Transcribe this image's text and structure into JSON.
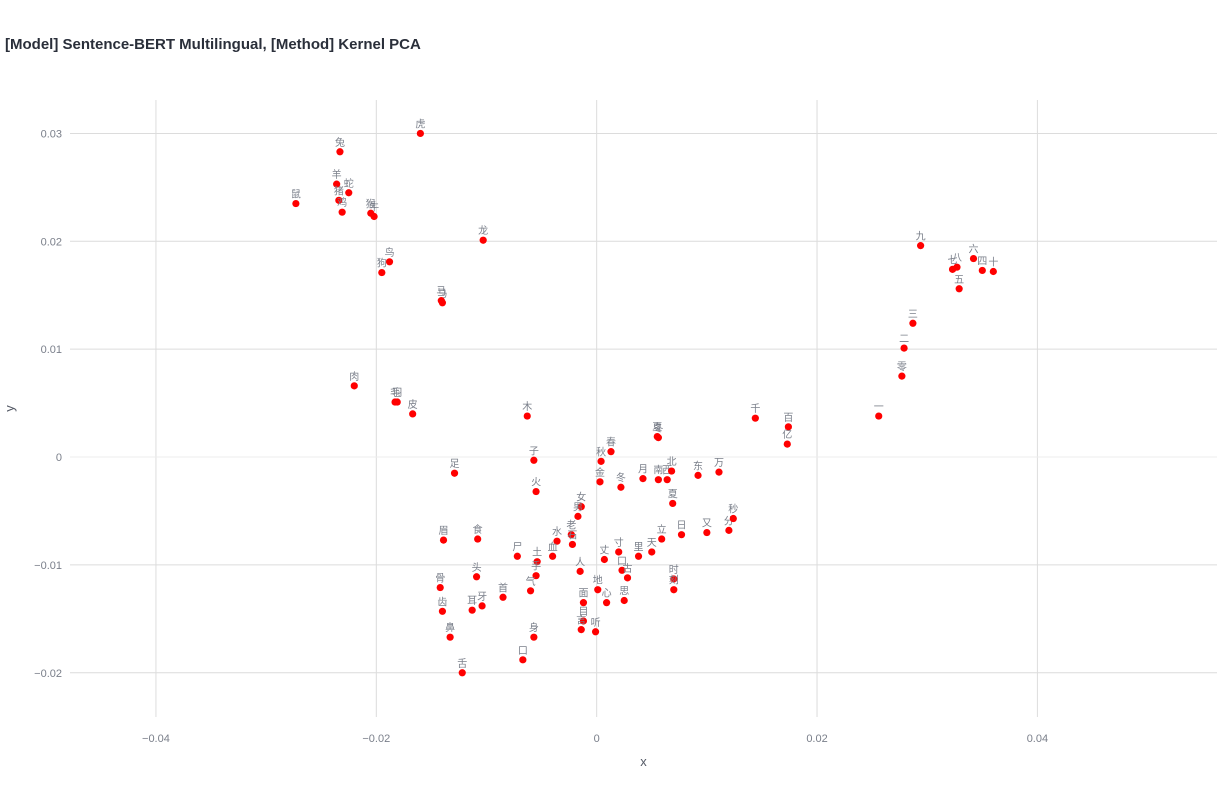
{
  "chart_data": {
    "type": "scatter",
    "title": "[Model] Sentence-BERT Multilingual, [Method] Kernel PCA",
    "xlabel": "x",
    "ylabel": "y",
    "xlim": [
      -0.0478,
      0.0563
    ],
    "ylim": [
      -0.0241,
      0.0331
    ],
    "xticks": [
      -0.04,
      -0.02,
      0,
      0.02,
      0.04
    ],
    "xtick_labels": [
      "−0.04",
      "−0.02",
      "0",
      "0.02",
      "0.04"
    ],
    "yticks": [
      -0.02,
      -0.01,
      0,
      0.01,
      0.02,
      0.03
    ],
    "ytick_labels": [
      "−0.02",
      "−0.01",
      "0",
      "0.01",
      "0.02",
      "0.03"
    ],
    "grid": true,
    "marker_color": "#ff0000",
    "points": [
      {
        "label": "虎",
        "x": -0.016,
        "y": 0.03
      },
      {
        "label": "兔",
        "x": -0.0233,
        "y": 0.0283
      },
      {
        "label": "羊",
        "x": -0.0236,
        "y": 0.0253
      },
      {
        "label": "蛇",
        "x": -0.0225,
        "y": 0.0245
      },
      {
        "label": "鼠",
        "x": -0.0273,
        "y": 0.0235
      },
      {
        "label": "猪",
        "x": -0.0234,
        "y": 0.0238
      },
      {
        "label": "鸡",
        "x": -0.0231,
        "y": 0.0227
      },
      {
        "label": "猴",
        "x": -0.0205,
        "y": 0.0226
      },
      {
        "label": "牛",
        "x": -0.0202,
        "y": 0.0223
      },
      {
        "label": "龙",
        "x": -0.0103,
        "y": 0.0201
      },
      {
        "label": "鸟",
        "x": -0.0188,
        "y": 0.0181
      },
      {
        "label": "狗",
        "x": -0.0195,
        "y": 0.0171
      },
      {
        "label": "马",
        "x": -0.0141,
        "y": 0.0145
      },
      {
        "label": "马",
        "x": -0.014,
        "y": 0.0143
      },
      {
        "label": "肉",
        "x": -0.022,
        "y": 0.0066
      },
      {
        "label": "毛",
        "x": -0.0183,
        "y": 0.0051
      },
      {
        "label": "羽",
        "x": -0.0181,
        "y": 0.0051
      },
      {
        "label": "皮",
        "x": -0.0167,
        "y": 0.004
      },
      {
        "label": "木",
        "x": -0.0063,
        "y": 0.0038
      },
      {
        "label": "春",
        "x": 0.0013,
        "y": 0.0005
      },
      {
        "label": "秋",
        "x": 0.0004,
        "y": -0.0004
      },
      {
        "label": "夏",
        "x": 0.0055,
        "y": 0.0019
      },
      {
        "label": "冬",
        "x": 0.0056,
        "y": 0.0018
      },
      {
        "label": "子",
        "x": -0.0057,
        "y": -0.0003
      },
      {
        "label": "足",
        "x": -0.0129,
        "y": -0.0015
      },
      {
        "label": "火",
        "x": -0.0055,
        "y": -0.0032
      },
      {
        "label": "金",
        "x": 0.0003,
        "y": -0.0023
      },
      {
        "label": "冬",
        "x": 0.0022,
        "y": -0.0028
      },
      {
        "label": "月",
        "x": 0.0042,
        "y": -0.002
      },
      {
        "label": "南",
        "x": 0.0056,
        "y": -0.0021
      },
      {
        "label": "西",
        "x": 0.0064,
        "y": -0.0021
      },
      {
        "label": "北",
        "x": 0.0068,
        "y": -0.0013
      },
      {
        "label": "东",
        "x": 0.0092,
        "y": -0.0017
      },
      {
        "label": "万",
        "x": 0.0111,
        "y": -0.0014
      },
      {
        "label": "夏",
        "x": 0.0069,
        "y": -0.0043
      },
      {
        "label": "千",
        "x": 0.0144,
        "y": 0.0036
      },
      {
        "label": "百",
        "x": 0.0174,
        "y": 0.0028
      },
      {
        "label": "亿",
        "x": 0.0173,
        "y": 0.0012
      },
      {
        "label": "女",
        "x": -0.0014,
        "y": -0.0046
      },
      {
        "label": "男",
        "x": -0.0017,
        "y": -0.0055
      },
      {
        "label": "眉",
        "x": -0.0139,
        "y": -0.0077
      },
      {
        "label": "食",
        "x": -0.0108,
        "y": -0.0076
      },
      {
        "label": "水",
        "x": -0.0036,
        "y": -0.0078
      },
      {
        "label": "老",
        "x": -0.0023,
        "y": -0.0072
      },
      {
        "label": "石",
        "x": -0.0022,
        "y": -0.0081
      },
      {
        "label": "立",
        "x": 0.0059,
        "y": -0.0076
      },
      {
        "label": "日",
        "x": 0.0077,
        "y": -0.0072
      },
      {
        "label": "又",
        "x": 0.01,
        "y": -0.007
      },
      {
        "label": "分",
        "x": 0.012,
        "y": -0.0068
      },
      {
        "label": "秒",
        "x": 0.0124,
        "y": -0.0057
      },
      {
        "label": "尸",
        "x": -0.0072,
        "y": -0.0092
      },
      {
        "label": "土",
        "x": -0.0054,
        "y": -0.0097
      },
      {
        "label": "血",
        "x": -0.004,
        "y": -0.0092
      },
      {
        "label": "寸",
        "x": 0.002,
        "y": -0.0088
      },
      {
        "label": "天",
        "x": 0.005,
        "y": -0.0088
      },
      {
        "label": "里",
        "x": 0.0038,
        "y": -0.0092
      },
      {
        "label": "丈",
        "x": 0.0007,
        "y": -0.0095
      },
      {
        "label": "口",
        "x": 0.0023,
        "y": -0.0105
      },
      {
        "label": "古",
        "x": 0.0028,
        "y": -0.0112
      },
      {
        "label": "人",
        "x": -0.0015,
        "y": -0.0106
      },
      {
        "label": "时",
        "x": 0.007,
        "y": -0.0113
      },
      {
        "label": "刻",
        "x": 0.007,
        "y": -0.0123
      },
      {
        "label": "头",
        "x": -0.0109,
        "y": -0.0111
      },
      {
        "label": "手",
        "x": -0.0055,
        "y": -0.011
      },
      {
        "label": "骨",
        "x": -0.0142,
        "y": -0.0121
      },
      {
        "label": "首",
        "x": -0.0085,
        "y": -0.013
      },
      {
        "label": "气",
        "x": -0.006,
        "y": -0.0124
      },
      {
        "label": "地",
        "x": 0.0001,
        "y": -0.0123
      },
      {
        "label": "面",
        "x": -0.0012,
        "y": -0.0135
      },
      {
        "label": "心",
        "x": 0.0009,
        "y": -0.0135
      },
      {
        "label": "思",
        "x": 0.0025,
        "y": -0.0133
      },
      {
        "label": "齿",
        "x": -0.014,
        "y": -0.0143
      },
      {
        "label": "耳",
        "x": -0.0113,
        "y": -0.0142
      },
      {
        "label": "牙",
        "x": -0.0104,
        "y": -0.0138
      },
      {
        "label": "目",
        "x": -0.0012,
        "y": -0.0152
      },
      {
        "label": "言",
        "x": -0.0014,
        "y": -0.016
      },
      {
        "label": "听",
        "x": -0.0001,
        "y": -0.0162
      },
      {
        "label": "身",
        "x": -0.0057,
        "y": -0.0167
      },
      {
        "label": "鼻",
        "x": -0.0133,
        "y": -0.0167
      },
      {
        "label": "口",
        "x": -0.0067,
        "y": -0.0188
      },
      {
        "label": "舌",
        "x": -0.0122,
        "y": -0.02
      },
      {
        "label": "九",
        "x": 0.0294,
        "y": 0.0196
      },
      {
        "label": "六",
        "x": 0.0342,
        "y": 0.0184
      },
      {
        "label": "七",
        "x": 0.0323,
        "y": 0.0174
      },
      {
        "label": "八",
        "x": 0.0327,
        "y": 0.0176
      },
      {
        "label": "四",
        "x": 0.035,
        "y": 0.0173
      },
      {
        "label": "十",
        "x": 0.036,
        "y": 0.0172
      },
      {
        "label": "五",
        "x": 0.0329,
        "y": 0.0156
      },
      {
        "label": "三",
        "x": 0.0287,
        "y": 0.0124
      },
      {
        "label": "二",
        "x": 0.0279,
        "y": 0.0101
      },
      {
        "label": "零",
        "x": 0.0277,
        "y": 0.0075
      },
      {
        "label": "一",
        "x": 0.0256,
        "y": 0.0038
      }
    ]
  }
}
